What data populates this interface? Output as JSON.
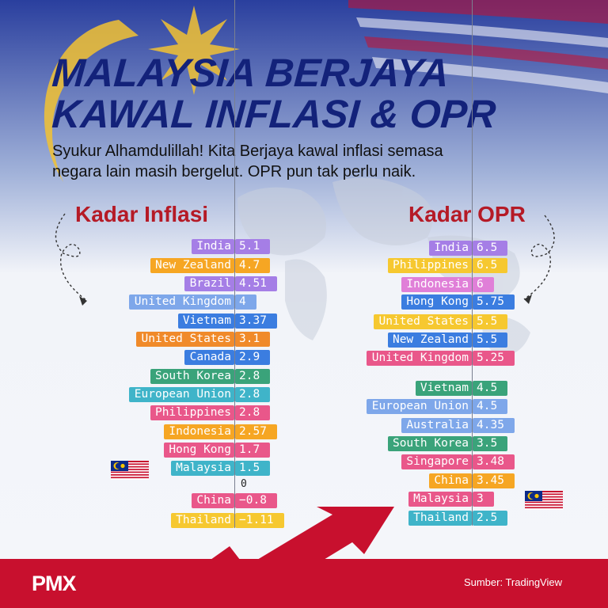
{
  "header": {
    "title_line1": "MALAYSIA BERJAYA",
    "title_line2": "KAWAL INFLASI & OPR",
    "subtitle_line1": "Syukur Alhamdulillah! Kita Berjaya kawal inflasi semasa",
    "subtitle_line2": "negara lain masih bergelut. OPR pun tak perlu naik."
  },
  "footer": {
    "logo": "PMX",
    "source": "Sumber: TradingView"
  },
  "colors": {
    "purple": "#a57ee6",
    "orange": "#f6a623",
    "blue": "#3b7de0",
    "lightblue": "#7ea7ea",
    "teal": "#3fb4c9",
    "green": "#3aa37a",
    "pink": "#e9578a",
    "yellow": "#f6c830",
    "title_blue": "#13227a",
    "title_red": "#b51a26",
    "footer_red": "#c8102e"
  },
  "chart_data": [
    {
      "type": "bar",
      "title": "Kadar Inflasi",
      "zero_label": "0",
      "categories": [
        "India",
        "New Zealand",
        "Brazil",
        "United Kingdom",
        "Vietnam",
        "United States",
        "Canada",
        "South Korea",
        "European Union",
        "Philippines",
        "Indonesia",
        "Hong Kong",
        "Malaysia",
        "China",
        "Thailand"
      ],
      "values": [
        5.1,
        4.7,
        4.51,
        4,
        3.37,
        3.1,
        2.9,
        2.8,
        2.8,
        2.8,
        2.57,
        1.7,
        1.5,
        -0.8,
        -1.11
      ],
      "value_labels": [
        "5.1",
        "4.7",
        "4.51",
        "4",
        "3.37",
        "3.1",
        "2.9",
        "2.8",
        "2.8",
        "2.8",
        "2.57",
        "1.7",
        "1.5",
        "−0.8",
        "−1.11"
      ],
      "colors": [
        "#a57ee6",
        "#f6a623",
        "#a57ee6",
        "#7ea7ea",
        "#3b7de0",
        "#f08a2a",
        "#3b7de0",
        "#3aa37a",
        "#3fb4c9",
        "#e9578a",
        "#f6a623",
        "#e9578a",
        "#3fb4c9",
        "#e9578a",
        "#f6c830"
      ],
      "highlight": "Malaysia"
    },
    {
      "type": "bar",
      "title": "Kadar OPR",
      "categories": [
        "India",
        "Philippines",
        "Indonesia",
        "Hong Kong",
        "United States",
        "New Zealand",
        "United Kingdom",
        "Vietnam",
        "European Union",
        "Australia",
        "South Korea",
        "Singapore",
        "China",
        "Malaysia",
        "Thailand"
      ],
      "values": [
        6.5,
        6.5,
        6,
        5.75,
        5.5,
        5.5,
        5.25,
        4.5,
        4.5,
        4.35,
        3.5,
        3.48,
        3.45,
        3,
        2.5
      ],
      "value_labels": [
        "6.5",
        "6.5",
        "6",
        "5.75",
        "5.5",
        "5.5",
        "5.25",
        "4.5",
        "4.5",
        "4.35",
        "3.5",
        "3.48",
        "3.45",
        "3",
        "2.5"
      ],
      "colors": [
        "#a57ee6",
        "#f6c830",
        "#e07fd8",
        "#3b7de0",
        "#f6c830",
        "#3b7de0",
        "#e9578a",
        "#3aa37a",
        "#7ea7ea",
        "#7ea7ea",
        "#3aa37a",
        "#e9578a",
        "#f6a623",
        "#e9578a",
        "#3fb4c9"
      ],
      "highlight": "Malaysia"
    }
  ]
}
